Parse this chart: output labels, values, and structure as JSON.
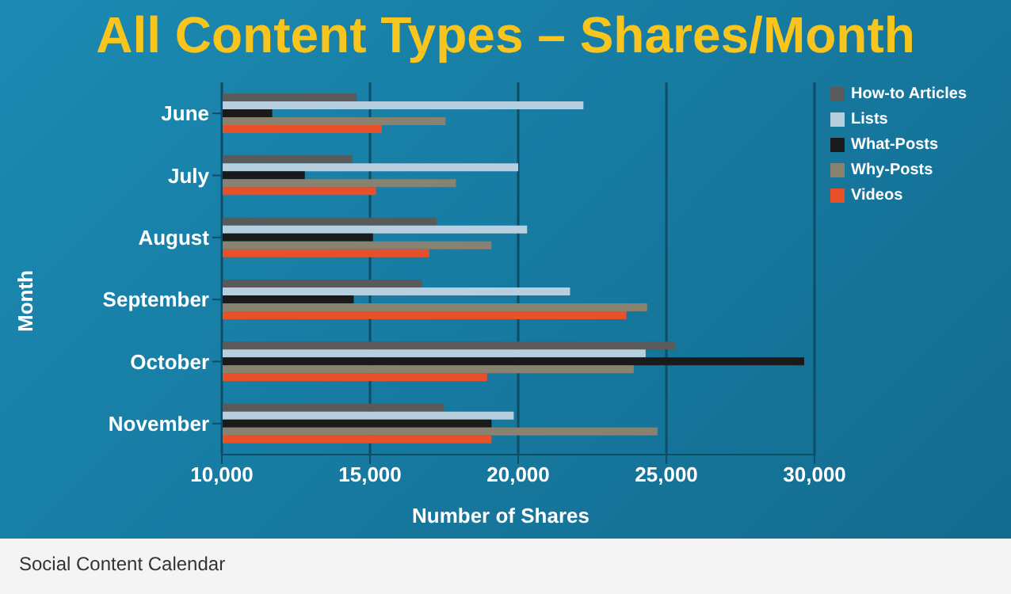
{
  "chart_data": {
    "type": "bar",
    "orientation": "horizontal",
    "title": "All Content Types – Shares/Month",
    "xlabel": "Number of Shares",
    "ylabel": "Month",
    "categories": [
      "June",
      "July",
      "August",
      "September",
      "October",
      "November"
    ],
    "series": [
      {
        "name": "How-to Articles",
        "color": "#5a5a5a",
        "values": [
          14550,
          14400,
          17250,
          16750,
          25300,
          17500
        ]
      },
      {
        "name": "Lists",
        "color": "#b8cfdf",
        "values": [
          22200,
          20000,
          20300,
          21750,
          24300,
          19850
        ]
      },
      {
        "name": "What-Posts",
        "color": "#1a1a1a",
        "values": [
          11700,
          12800,
          15100,
          14450,
          29650,
          19100
        ]
      },
      {
        "name": "Why-Posts",
        "color": "#8a8270",
        "values": [
          17550,
          17900,
          19100,
          24350,
          23900,
          24700
        ]
      },
      {
        "name": "Videos",
        "color": "#e8502a",
        "values": [
          15400,
          15200,
          17000,
          23650,
          18950,
          19100
        ]
      }
    ],
    "xlim": [
      10000,
      30000
    ],
    "xticks": [
      {
        "value": 10000,
        "label": "10,000"
      },
      {
        "value": 15000,
        "label": "15,000"
      },
      {
        "value": 20000,
        "label": "20,000"
      },
      {
        "value": 25000,
        "label": "25,000"
      },
      {
        "value": 30000,
        "label": "30,000"
      }
    ],
    "grid": "x",
    "legend": "top right",
    "annotations": [
      "Social Content Calendar"
    ]
  }
}
